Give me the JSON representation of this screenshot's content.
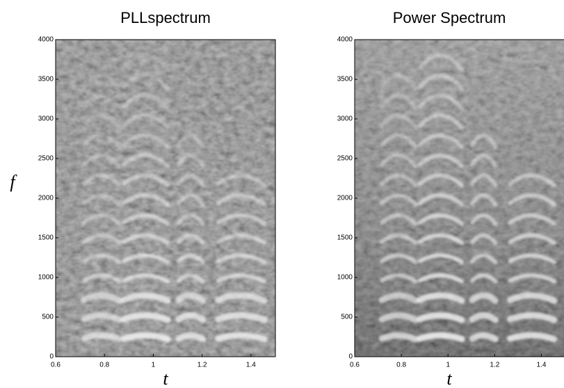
{
  "chart_data": [
    {
      "type": "heatmap",
      "title": "PLLspectrum",
      "xlabel": "t",
      "ylabel": "f",
      "xlim": [
        0.6,
        1.5
      ],
      "ylim": [
        0,
        4000
      ],
      "xticks": [
        0.6,
        0.8,
        1,
        1.2,
        1.4
      ],
      "yticks": [
        0,
        500,
        1000,
        1500,
        2000,
        2500,
        3000,
        3500,
        4000
      ]
    },
    {
      "type": "heatmap",
      "title": "Power Spectrum",
      "xlabel": "t",
      "xlim": [
        0.6,
        1.5
      ],
      "ylim": [
        0,
        4000
      ],
      "xticks": [
        0.6,
        0.8,
        1,
        1.2,
        1.4
      ],
      "yticks": [
        0,
        500,
        1000,
        1500,
        2000,
        2500,
        3000,
        3500,
        4000
      ]
    }
  ]
}
